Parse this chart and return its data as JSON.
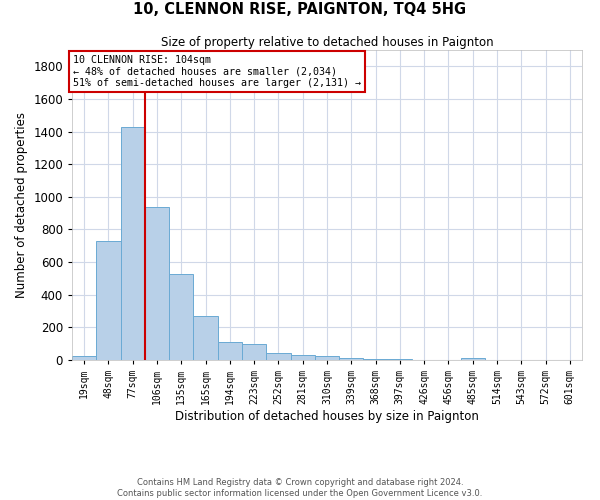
{
  "title": "10, CLENNON RISE, PAIGNTON, TQ4 5HG",
  "subtitle": "Size of property relative to detached houses in Paignton",
  "xlabel": "Distribution of detached houses by size in Paignton",
  "ylabel": "Number of detached properties",
  "categories": [
    "19sqm",
    "48sqm",
    "77sqm",
    "106sqm",
    "135sqm",
    "165sqm",
    "194sqm",
    "223sqm",
    "252sqm",
    "281sqm",
    "310sqm",
    "339sqm",
    "368sqm",
    "397sqm",
    "426sqm",
    "456sqm",
    "485sqm",
    "514sqm",
    "543sqm",
    "572sqm",
    "601sqm"
  ],
  "values": [
    25,
    730,
    1430,
    935,
    530,
    270,
    110,
    100,
    45,
    30,
    25,
    12,
    5,
    5,
    3,
    2,
    12,
    3,
    2,
    2,
    0
  ],
  "bar_color": "#b8d0e8",
  "bar_edge_color": "#6aaad4",
  "red_line_x": 2.5,
  "annotation_text": "10 CLENNON RISE: 104sqm\n← 48% of detached houses are smaller (2,034)\n51% of semi-detached houses are larger (2,131) →",
  "annotation_box_color": "#ffffff",
  "annotation_box_edge_color": "#cc0000",
  "ylim": [
    0,
    1900
  ],
  "yticks": [
    0,
    200,
    400,
    600,
    800,
    1000,
    1200,
    1400,
    1600,
    1800
  ],
  "grid_color": "#d0d8e8",
  "background_color": "#ffffff",
  "footer_line1": "Contains HM Land Registry data © Crown copyright and database right 2024.",
  "footer_line2": "Contains public sector information licensed under the Open Government Licence v3.0."
}
